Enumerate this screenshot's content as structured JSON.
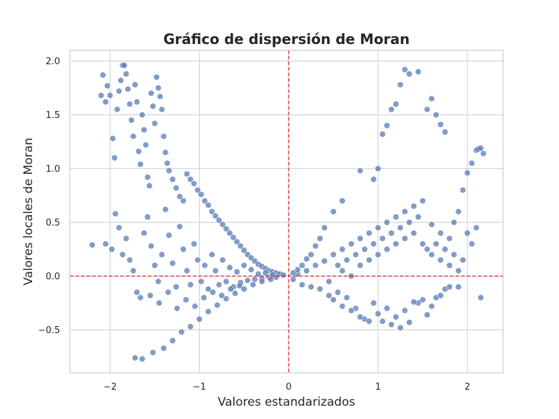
{
  "chart_data": {
    "type": "scatter",
    "title": "Gráfico de dispersión de Moran",
    "xlabel": "Valores estandarizados",
    "ylabel": "Valores locales de Moran",
    "xlim": [
      -2.45,
      2.4
    ],
    "ylim": [
      -0.9,
      2.1
    ],
    "xticks": [
      -2,
      -1,
      0,
      1,
      2
    ],
    "xtick_labels": [
      "−2",
      "−1",
      "0",
      "1",
      "2"
    ],
    "yticks": [
      -0.5,
      0.0,
      0.5,
      1.0,
      1.5,
      2.0
    ],
    "ytick_labels": [
      "−0.5",
      "0.0",
      "0.5",
      "1.0",
      "1.5",
      "2.0"
    ],
    "grid": true,
    "reference_lines": {
      "x": 0,
      "y": 0,
      "color": "#e41a1c",
      "style": "dashed"
    },
    "point_color": "#4c72b0",
    "point_edge_color": "#ffffff",
    "point_opacity": 0.7,
    "series": [
      {
        "values": [
          [
            -2.2,
            0.29
          ],
          [
            -2.1,
            1.68
          ],
          [
            -2.08,
            1.87
          ],
          [
            -2.05,
            1.62
          ],
          [
            -2.03,
            1.77
          ],
          [
            -2.0,
            1.68
          ],
          [
            -1.97,
            1.28
          ],
          [
            -1.95,
            1.1
          ],
          [
            -1.92,
            1.55
          ],
          [
            -1.9,
            1.72
          ],
          [
            -1.88,
            1.82
          ],
          [
            -1.86,
            1.96
          ],
          [
            -1.84,
            1.96
          ],
          [
            -1.82,
            1.88
          ],
          [
            -1.8,
            1.74
          ],
          [
            -1.78,
            1.6
          ],
          [
            -1.76,
            1.45
          ],
          [
            -1.74,
            1.3
          ],
          [
            -1.72,
            1.78
          ],
          [
            -1.7,
            1.62
          ],
          [
            -1.68,
            1.16
          ],
          [
            -1.66,
            1.04
          ],
          [
            -1.64,
            1.5
          ],
          [
            -1.62,
            1.36
          ],
          [
            -1.6,
            1.22
          ],
          [
            -1.58,
            0.92
          ],
          [
            -1.56,
            0.84
          ],
          [
            -1.54,
            1.7
          ],
          [
            -1.52,
            1.58
          ],
          [
            -1.5,
            1.42
          ],
          [
            -1.48,
            1.85
          ],
          [
            -1.46,
            1.75
          ],
          [
            -1.44,
            1.67
          ],
          [
            -1.42,
            1.55
          ],
          [
            -1.4,
            1.3
          ],
          [
            -1.38,
            1.15
          ],
          [
            -1.36,
            1.05
          ],
          [
            -1.34,
            0.98
          ],
          [
            -1.3,
            0.9
          ],
          [
            -1.26,
            0.82
          ],
          [
            -1.22,
            0.74
          ],
          [
            -1.18,
            0.7
          ],
          [
            -1.14,
            0.95
          ],
          [
            -1.1,
            0.9
          ],
          [
            -1.06,
            0.86
          ],
          [
            -1.02,
            0.8
          ],
          [
            -0.98,
            0.76
          ],
          [
            -0.94,
            0.7
          ],
          [
            -0.9,
            0.66
          ],
          [
            -0.86,
            0.6
          ],
          [
            -0.82,
            0.56
          ],
          [
            -0.78,
            0.52
          ],
          [
            -0.74,
            0.48
          ],
          [
            -0.7,
            0.44
          ],
          [
            -0.66,
            0.4
          ],
          [
            -0.62,
            0.36
          ],
          [
            -0.58,
            0.32
          ],
          [
            -0.54,
            0.28
          ],
          [
            -0.5,
            0.24
          ],
          [
            -0.46,
            0.2
          ],
          [
            -0.42,
            0.17
          ],
          [
            -0.38,
            0.14
          ],
          [
            -0.34,
            0.11
          ],
          [
            -0.3,
            0.09
          ],
          [
            -0.26,
            0.07
          ],
          [
            -0.22,
            0.05
          ],
          [
            -0.18,
            0.04
          ],
          [
            -0.14,
            0.03
          ],
          [
            -0.1,
            0.02
          ],
          [
            -0.06,
            0.01
          ],
          [
            -2.05,
            0.3
          ],
          [
            -1.98,
            0.25
          ],
          [
            -1.94,
            0.58
          ],
          [
            -1.9,
            0.45
          ],
          [
            -1.86,
            0.2
          ],
          [
            -1.82,
            0.35
          ],
          [
            -1.78,
            0.15
          ],
          [
            -1.74,
            0.05
          ],
          [
            -1.7,
            -0.15
          ],
          [
            -1.66,
            -0.2
          ],
          [
            -1.62,
            0.4
          ],
          [
            -1.58,
            0.55
          ],
          [
            -1.54,
            0.28
          ],
          [
            -1.5,
            0.1
          ],
          [
            -1.46,
            -0.05
          ],
          [
            -1.42,
            0.2
          ],
          [
            -1.38,
            0.62
          ],
          [
            -1.34,
            0.38
          ],
          [
            -1.3,
            0.12
          ],
          [
            -1.26,
            -0.1
          ],
          [
            -1.22,
            0.46
          ],
          [
            -1.18,
            0.25
          ],
          [
            -1.14,
            0.05
          ],
          [
            -1.1,
            -0.08
          ],
          [
            -1.06,
            0.3
          ],
          [
            -1.02,
            0.15
          ],
          [
            -0.98,
            -0.05
          ],
          [
            -0.94,
            0.1
          ],
          [
            -0.9,
            -0.12
          ],
          [
            -0.86,
            0.2
          ],
          [
            -0.82,
            0.05
          ],
          [
            -0.78,
            -0.08
          ],
          [
            -0.74,
            0.15
          ],
          [
            -0.7,
            -0.05
          ],
          [
            -0.66,
            0.08
          ],
          [
            -0.62,
            -0.1
          ],
          [
            -0.58,
            0.04
          ],
          [
            -0.54,
            -0.06
          ],
          [
            -0.5,
            0.1
          ],
          [
            -0.46,
            -0.04
          ],
          [
            -0.42,
            0.06
          ],
          [
            -0.38,
            -0.03
          ],
          [
            -0.34,
            0.02
          ],
          [
            -0.3,
            -0.02
          ],
          [
            -0.26,
            0.03
          ],
          [
            -0.22,
            -0.01
          ],
          [
            -0.18,
            0.01
          ],
          [
            -0.14,
            -0.01
          ],
          [
            -1.72,
            -0.76
          ],
          [
            -1.64,
            -0.77
          ],
          [
            -1.52,
            -0.71
          ],
          [
            -1.4,
            -0.67
          ],
          [
            -1.3,
            -0.6
          ],
          [
            -1.2,
            -0.52
          ],
          [
            -1.1,
            -0.47
          ],
          [
            -1.0,
            -0.4
          ],
          [
            -0.9,
            -0.33
          ],
          [
            -0.8,
            -0.27
          ],
          [
            -0.7,
            -0.21
          ],
          [
            -0.6,
            -0.16
          ],
          [
            -0.5,
            -0.12
          ],
          [
            -0.4,
            -0.08
          ],
          [
            -0.3,
            -0.05
          ],
          [
            -0.2,
            -0.03
          ],
          [
            -1.55,
            -0.18
          ],
          [
            -1.45,
            -0.25
          ],
          [
            -1.35,
            -0.15
          ],
          [
            -1.25,
            -0.3
          ],
          [
            -1.15,
            -0.22
          ],
          [
            -1.05,
            -0.28
          ],
          [
            -0.95,
            -0.2
          ],
          [
            -0.85,
            -0.15
          ],
          [
            -0.75,
            -0.18
          ],
          [
            -0.65,
            -0.12
          ],
          [
            -0.55,
            -0.09
          ],
          [
            0.05,
            -0.03
          ],
          [
            0.1,
            0.02
          ],
          [
            0.15,
            -0.08
          ],
          [
            0.2,
            0.05
          ],
          [
            0.25,
            -0.1
          ],
          [
            0.3,
            0.1
          ],
          [
            0.35,
            -0.12
          ],
          [
            0.4,
            0.14
          ],
          [
            0.45,
            -0.05
          ],
          [
            0.5,
            0.2
          ],
          [
            0.55,
            -0.15
          ],
          [
            0.6,
            0.25
          ],
          [
            0.65,
            -0.2
          ],
          [
            0.7,
            0.3
          ],
          [
            0.75,
            -0.3
          ],
          [
            0.8,
            0.35
          ],
          [
            0.85,
            -0.4
          ],
          [
            0.9,
            0.4
          ],
          [
            0.95,
            -0.25
          ],
          [
            1.0,
            0.45
          ],
          [
            1.05,
            -0.42
          ],
          [
            1.1,
            0.5
          ],
          [
            1.15,
            -0.45
          ],
          [
            1.2,
            0.55
          ],
          [
            1.25,
            -0.48
          ],
          [
            1.3,
            0.6
          ],
          [
            1.35,
            -0.43
          ],
          [
            1.4,
            0.65
          ],
          [
            1.45,
            -0.25
          ],
          [
            1.5,
            0.7
          ],
          [
            1.55,
            -0.36
          ],
          [
            1.6,
            0.48
          ],
          [
            1.65,
            -0.2
          ],
          [
            1.7,
            0.4
          ],
          [
            1.75,
            -0.12
          ],
          [
            1.8,
            0.35
          ],
          [
            1.85,
            0.5
          ],
          [
            1.9,
            0.6
          ],
          [
            1.95,
            0.8
          ],
          [
            2.0,
            0.96
          ],
          [
            2.05,
            1.05
          ],
          [
            2.1,
            1.17
          ],
          [
            2.12,
            1.18
          ],
          [
            2.15,
            1.19
          ],
          [
            2.18,
            1.14
          ],
          [
            2.15,
            -0.2
          ],
          [
            2.1,
            0.45
          ],
          [
            2.05,
            0.3
          ],
          [
            1.55,
            1.55
          ],
          [
            1.6,
            1.65
          ],
          [
            1.65,
            1.5
          ],
          [
            1.7,
            1.41
          ],
          [
            1.75,
            1.34
          ],
          [
            1.45,
            1.9
          ],
          [
            1.35,
            1.88
          ],
          [
            1.3,
            1.92
          ],
          [
            1.25,
            1.78
          ],
          [
            1.2,
            1.6
          ],
          [
            1.15,
            1.55
          ],
          [
            1.1,
            1.4
          ],
          [
            1.05,
            1.32
          ],
          [
            1.0,
            1.0
          ],
          [
            0.95,
            0.9
          ],
          [
            0.8,
            0.98
          ],
          [
            0.6,
            0.7
          ],
          [
            0.5,
            0.6
          ],
          [
            0.4,
            0.45
          ],
          [
            0.35,
            0.35
          ],
          [
            0.3,
            0.28
          ],
          [
            0.25,
            0.2
          ],
          [
            0.2,
            0.16
          ],
          [
            0.15,
            0.1
          ],
          [
            0.1,
            0.06
          ],
          [
            0.05,
            0.03
          ],
          [
            0.55,
            0.1
          ],
          [
            0.6,
            0.05
          ],
          [
            0.65,
            0.15
          ],
          [
            0.7,
            0.0
          ],
          [
            0.75,
            0.2
          ],
          [
            0.8,
            0.1
          ],
          [
            0.85,
            0.25
          ],
          [
            0.9,
            0.15
          ],
          [
            0.95,
            0.3
          ],
          [
            1.0,
            0.2
          ],
          [
            1.05,
            0.35
          ],
          [
            1.1,
            0.25
          ],
          [
            1.15,
            0.4
          ],
          [
            1.2,
            0.3
          ],
          [
            1.25,
            0.45
          ],
          [
            1.3,
            0.35
          ],
          [
            1.35,
            0.5
          ],
          [
            1.4,
            0.4
          ],
          [
            1.45,
            0.55
          ],
          [
            1.5,
            0.3
          ],
          [
            1.55,
            0.25
          ],
          [
            1.6,
            0.2
          ],
          [
            1.65,
            0.3
          ],
          [
            1.7,
            0.15
          ],
          [
            1.75,
            0.25
          ],
          [
            1.8,
            0.1
          ],
          [
            1.85,
            0.2
          ],
          [
            1.9,
            0.05
          ],
          [
            1.95,
            0.15
          ],
          [
            2.0,
            0.4
          ],
          [
            0.45,
            -0.18
          ],
          [
            0.5,
            -0.22
          ],
          [
            0.6,
            -0.28
          ],
          [
            0.7,
            -0.32
          ],
          [
            0.8,
            -0.38
          ],
          [
            0.9,
            -0.42
          ],
          [
            1.0,
            -0.35
          ],
          [
            1.1,
            -0.3
          ],
          [
            1.2,
            -0.38
          ],
          [
            1.3,
            -0.32
          ],
          [
            1.4,
            -0.24
          ],
          [
            1.5,
            -0.22
          ],
          [
            1.6,
            -0.28
          ],
          [
            1.7,
            -0.18
          ],
          [
            1.8,
            -0.1
          ],
          [
            1.9,
            -0.1
          ]
        ]
      }
    ]
  }
}
